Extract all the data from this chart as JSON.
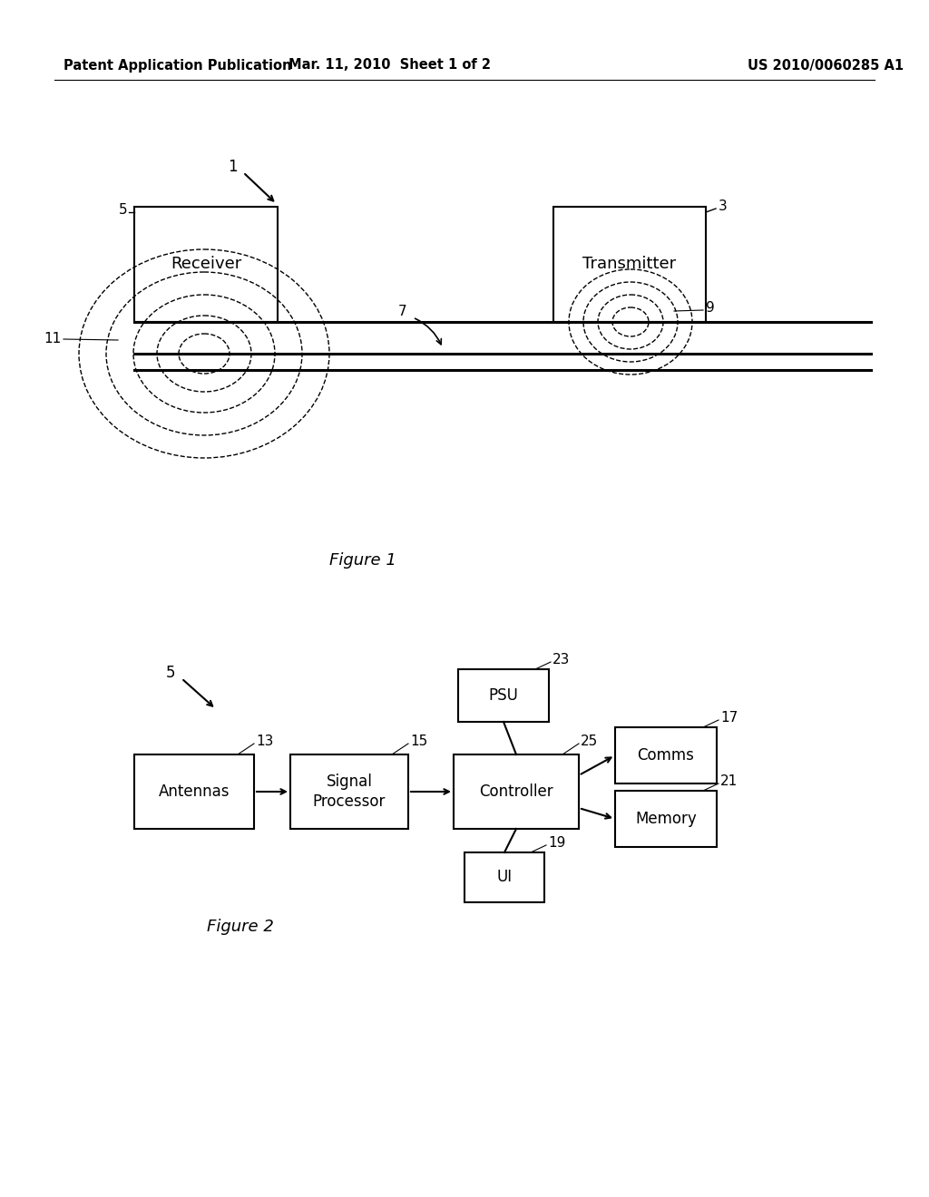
{
  "bg_color": "#ffffff",
  "header_left": "Patent Application Publication",
  "header_mid": "Mar. 11, 2010  Sheet 1 of 2",
  "header_right": "US 2010/0060285 A1",
  "fig1_caption": "Figure 1",
  "fig2_caption": "Figure 2",
  "line_color": "#000000",
  "text_color": "#000000"
}
